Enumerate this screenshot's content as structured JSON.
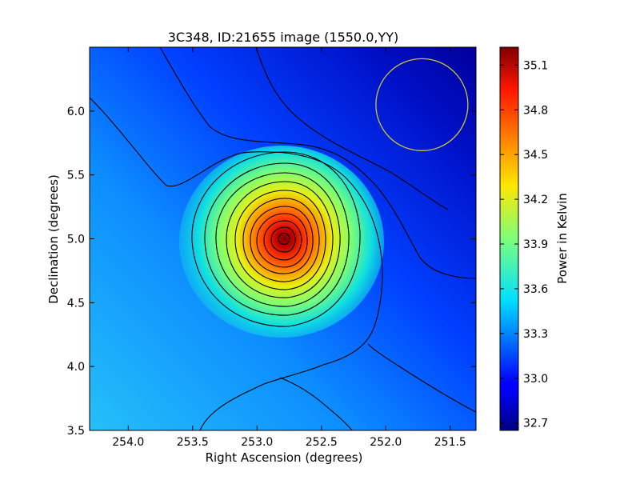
{
  "chart_data": {
    "type": "heatmap",
    "title": "3C348, ID:21655 image (1550.0,YY)",
    "xlabel": "Right Ascension (degrees)",
    "ylabel": "Declination (degrees)",
    "xlim": [
      254.3,
      251.3
    ],
    "ylim": [
      3.5,
      6.5
    ],
    "x_ticks": [
      "254.0",
      "253.5",
      "253.0",
      "252.5",
      "252.0",
      "251.5"
    ],
    "y_ticks": [
      "3.5",
      "4.0",
      "4.5",
      "5.0",
      "5.5",
      "6.0"
    ],
    "colorbar": {
      "label": "Power in Kelvin",
      "range": [
        32.65,
        35.22
      ],
      "ticks": [
        "32.7",
        "33.0",
        "33.3",
        "33.6",
        "33.9",
        "34.2",
        "34.5",
        "34.8",
        "35.1"
      ],
      "colormap": "jet"
    },
    "source": {
      "ra": 252.79,
      "dec": 5.0,
      "peak_kelvin": 35.2
    },
    "background_gradient": {
      "high_corner_value_kelvin": 33.5,
      "low_corner_value_kelvin": 32.7
    },
    "beam_circle": {
      "ra": 251.72,
      "dec": 6.05,
      "radius_deg": 0.36,
      "color": "#c8c832"
    },
    "contour_levels_kelvin": [
      33.05,
      33.3,
      33.5,
      33.7,
      33.9,
      34.1,
      34.3,
      34.5,
      34.7,
      34.85,
      35.0,
      35.15
    ]
  }
}
